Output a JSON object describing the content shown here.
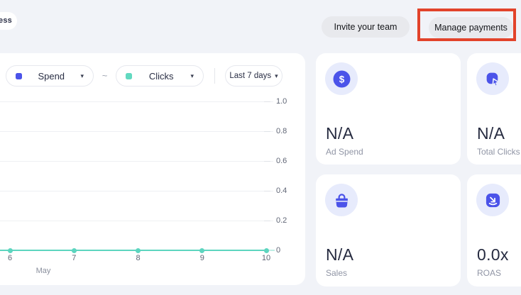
{
  "page": {
    "background": "#f1f3f8",
    "accent_blue": "#4b53e9",
    "accent_teal": "#5dd5bf",
    "annotation_red": "#e2432b"
  },
  "header": {
    "badge_text": "ess",
    "invite_button_label": "Invite your team",
    "manage_button_label": "Manage payments"
  },
  "chart_controls": {
    "series1_label": "Spend",
    "series1_color": "#4b53e9",
    "tilde": "~",
    "series2_label": "Clicks",
    "series2_color": "#62d9c0",
    "range_label": "Last 7 days",
    "caret": "▾"
  },
  "chart_data": {
    "type": "line",
    "x": [
      6,
      7,
      8,
      9,
      10
    ],
    "x_ticks": [
      "6",
      "7",
      "8",
      "9",
      "10"
    ],
    "x_group_label": "May",
    "y_ticks": [
      "1.0",
      "0.8",
      "0.6",
      "0.4",
      "0.2",
      "0"
    ],
    "ylim": [
      0,
      1.0
    ],
    "grid": "horizontal",
    "legend_position": "top-controls",
    "series": [
      {
        "name": "Clicks",
        "color": "#5dd5bf",
        "values": [
          0,
          0,
          0,
          0,
          0
        ]
      }
    ]
  },
  "stats": [
    {
      "icon": "dollar-circle-icon",
      "value": "N/A",
      "label": "Ad Spend"
    },
    {
      "icon": "cursor-click-icon",
      "value": "N/A",
      "label": "Total Clicks"
    },
    {
      "icon": "shopping-bag-icon",
      "value": "N/A",
      "label": "Sales"
    },
    {
      "icon": "return-arrow-icon",
      "value": "0.0x",
      "label": "ROAS"
    }
  ]
}
